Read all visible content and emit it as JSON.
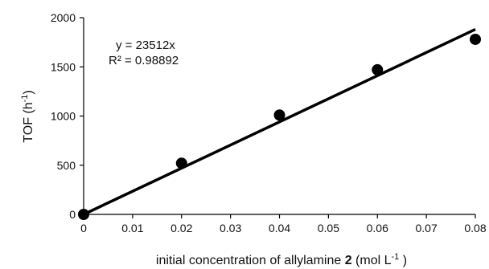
{
  "chart_data": {
    "type": "scatter",
    "xlabel_parts": {
      "before": "initial concentration of allylamine ",
      "bold": "2",
      "unit_open": " (mol L",
      "unit_sup": "-1",
      "unit_close": " )"
    },
    "ylabel_parts": {
      "main": "TOF (h",
      "sup": "-1",
      "close": ")"
    },
    "xlim": [
      0,
      0.08
    ],
    "ylim": [
      0,
      2000
    ],
    "x_ticks": [
      0,
      0.01,
      0.02,
      0.03,
      0.04,
      0.05,
      0.06,
      0.07,
      0.08
    ],
    "x_tick_labels": [
      "0",
      "0.01",
      "0.02",
      "0.03",
      "0.04",
      "0.05",
      "0.06",
      "0.07",
      "0.08"
    ],
    "y_ticks": [
      0,
      500,
      1000,
      1500,
      2000
    ],
    "y_tick_labels": [
      "0",
      "500",
      "1000",
      "1500",
      "2000"
    ],
    "series": [
      {
        "points": [
          {
            "x": 0,
            "y": 0
          },
          {
            "x": 0.02,
            "y": 520
          },
          {
            "x": 0.04,
            "y": 1010
          },
          {
            "x": 0.06,
            "y": 1470
          },
          {
            "x": 0.08,
            "y": 1780
          }
        ],
        "color": "#000000"
      }
    ],
    "trendline": {
      "slope": 23512,
      "intercept": 0,
      "x_range": [
        0,
        0.08
      ],
      "equation": "y = 23512x",
      "r2_label": "R² = 0.98892",
      "color": "#000000"
    },
    "grid": false,
    "legend": "none"
  }
}
